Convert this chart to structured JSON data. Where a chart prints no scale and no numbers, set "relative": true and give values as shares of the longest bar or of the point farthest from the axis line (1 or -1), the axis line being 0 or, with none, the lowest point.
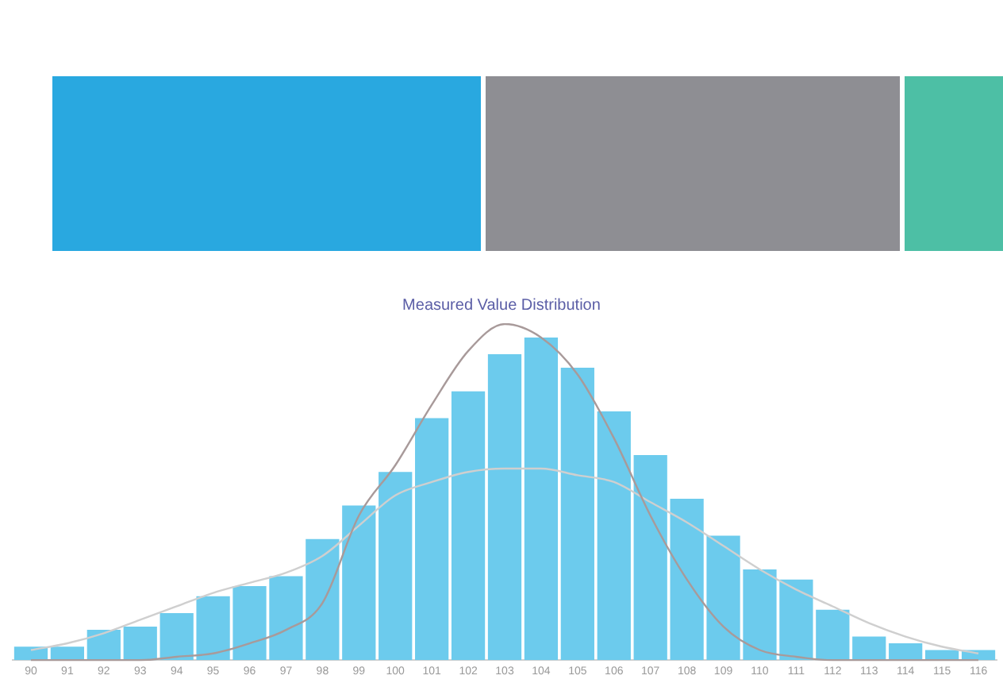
{
  "chart_data": {
    "type": "bar",
    "title": "Measured Value Distribution",
    "relative": true,
    "grid": false,
    "legend": false,
    "marker": "none",
    "categories": [
      "90",
      "91",
      "92",
      "93",
      "94",
      "95",
      "96",
      "97",
      "98",
      "99",
      "100",
      "101",
      "102",
      "103",
      "104",
      "105",
      "106",
      "107",
      "108",
      "109",
      "110",
      "111",
      "112",
      "113",
      "114",
      "115",
      "116"
    ],
    "series": [
      {
        "color": "#6ccbed",
        "values": [
          0.04,
          0.04,
          0.09,
          0.1,
          0.14,
          0.19,
          0.22,
          0.25,
          0.36,
          0.46,
          0.56,
          0.72,
          0.8,
          0.91,
          0.96,
          0.87,
          0.74,
          0.61,
          0.48,
          0.37,
          0.27,
          0.24,
          0.15,
          0.07,
          0.05,
          0.03,
          0.03
        ]
      },
      {
        "type": "line",
        "color": "#a89a9a",
        "values": [
          0,
          0,
          0,
          0,
          0.01,
          0.02,
          0.05,
          0.09,
          0.17,
          0.43,
          0.58,
          0.76,
          0.92,
          1,
          0.96,
          0.85,
          0.66,
          0.43,
          0.24,
          0.1,
          0.03,
          0.01,
          0,
          0,
          0,
          0,
          0
        ]
      },
      {
        "type": "line",
        "color": "#cfcfcf",
        "values": [
          0.03,
          0.05,
          0.08,
          0.12,
          0.16,
          0.2,
          0.23,
          0.26,
          0.31,
          0.4,
          0.49,
          0.53,
          0.56,
          0.57,
          0.57,
          0.55,
          0.53,
          0.47,
          0.41,
          0.34,
          0.27,
          0.21,
          0.16,
          0.11,
          0.07,
          0.04,
          0.02
        ]
      }
    ]
  }
}
